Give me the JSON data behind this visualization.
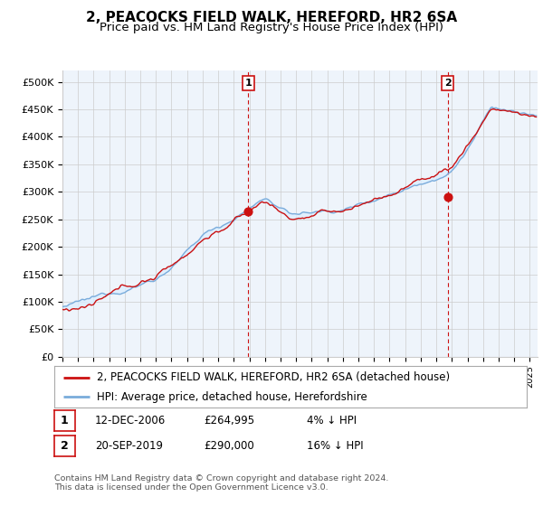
{
  "title": "2, PEACOCKS FIELD WALK, HEREFORD, HR2 6SA",
  "subtitle": "Price paid vs. HM Land Registry's House Price Index (HPI)",
  "ylabel_ticks": [
    "£0",
    "£50K",
    "£100K",
    "£150K",
    "£200K",
    "£250K",
    "£300K",
    "£350K",
    "£400K",
    "£450K",
    "£500K"
  ],
  "ytick_vals": [
    0,
    50000,
    100000,
    150000,
    200000,
    250000,
    300000,
    350000,
    400000,
    450000,
    500000
  ],
  "ylim": [
    0,
    520000
  ],
  "xlim_start": 1995.0,
  "xlim_end": 2025.5,
  "hpi_color": "#7aacdb",
  "price_color": "#cc1111",
  "fill_color": "#ddeeff",
  "marker1_date": 2006.92,
  "marker1_price": 264995,
  "marker2_date": 2019.72,
  "marker2_price": 290000,
  "legend_label1": "2, PEACOCKS FIELD WALK, HEREFORD, HR2 6SA (detached house)",
  "legend_label2": "HPI: Average price, detached house, Herefordshire",
  "footnote": "Contains HM Land Registry data © Crown copyright and database right 2024.\nThis data is licensed under the Open Government Licence v3.0.",
  "bg_color": "#ffffff",
  "plot_bg_color": "#eef4fb",
  "grid_color": "#cccccc",
  "title_fontsize": 11,
  "subtitle_fontsize": 9.5,
  "tick_fontsize": 8,
  "legend_fontsize": 8.5,
  "annotation_fontsize": 8.5
}
